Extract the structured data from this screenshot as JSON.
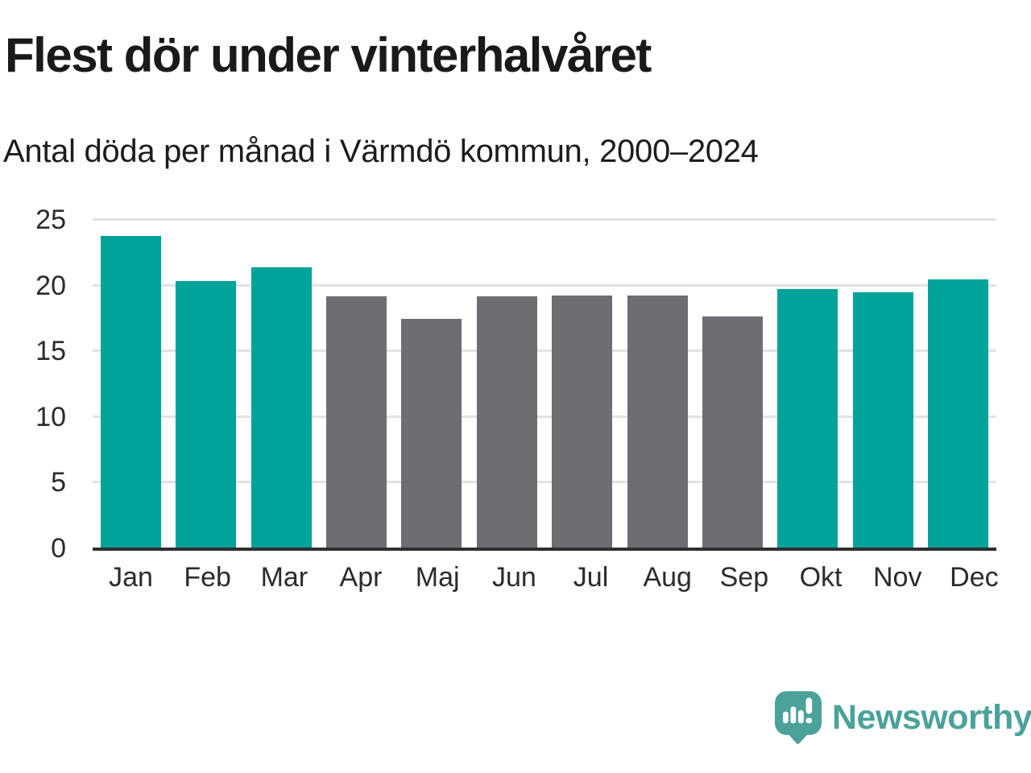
{
  "header": {
    "title": "Flest dör under vinterhalvåret",
    "subtitle": "Antal döda per månad i Värmdö kommun, 2000–2024"
  },
  "chart_data": {
    "type": "bar",
    "title": "Flest dör under vinterhalvåret",
    "subtitle": "Antal döda per månad i Värmdö kommun, 2000–2024",
    "categories": [
      "Jan",
      "Feb",
      "Mar",
      "Apr",
      "Maj",
      "Jun",
      "Jul",
      "Aug",
      "Sep",
      "Okt",
      "Nov",
      "Dec"
    ],
    "values": [
      23.7,
      20.3,
      21.3,
      19.1,
      17.4,
      19.1,
      19.2,
      19.2,
      17.6,
      19.7,
      19.4,
      20.4
    ],
    "seasons": [
      "winter",
      "winter",
      "winter",
      "summer",
      "summer",
      "summer",
      "summer",
      "summer",
      "summer",
      "winter",
      "winter",
      "winter"
    ],
    "colors": {
      "winter": "#00a39a",
      "summer": "#6d6d72"
    },
    "xlabel": "",
    "ylabel": "",
    "ylim": [
      0,
      25
    ],
    "yticks": [
      0,
      5,
      10,
      15,
      20,
      25
    ],
    "grid": "horizontal-only",
    "legend": "none",
    "axis_color": "#2f2f2f",
    "gridline_color": "#e2e2e2"
  },
  "footer": {
    "brand": "Newsworthy",
    "brand_color": "#4aa29a"
  }
}
